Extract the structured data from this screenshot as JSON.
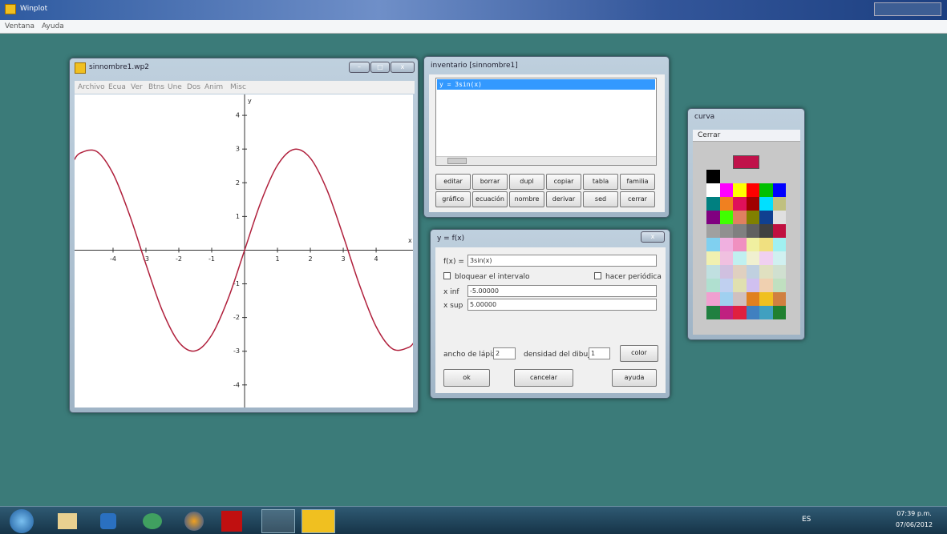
{
  "app": {
    "title": "Winplot",
    "menu": [
      "Ventana",
      "Ayuda"
    ]
  },
  "graph_window": {
    "title": "sinnombre1.wp2",
    "menu": [
      "Archivo",
      "Ecua",
      "Ver",
      "Btns",
      "Une",
      "Dos",
      "Anim",
      "Misc"
    ],
    "graph": {
      "x_label": "x",
      "y_label": "y",
      "xlim": [
        -5.17,
        5.12
      ],
      "ylim": [
        -4.67,
        4.62
      ],
      "xticks": [
        -4,
        -3,
        -2,
        -1,
        1,
        2,
        3,
        4
      ],
      "yticks": [
        -4,
        -3,
        -2,
        -1,
        1,
        2,
        3,
        4
      ],
      "curve": {
        "color": "#b0203c",
        "x": [
          -5.2,
          -5,
          -4.5,
          -4,
          -3.5,
          -3,
          -2.5,
          -2,
          -1.5,
          -1,
          -0.5,
          0,
          0.5,
          1,
          1.5,
          2,
          2.5,
          3,
          3.5,
          4,
          4.5,
          5,
          5.2
        ],
        "y": [
          2.65,
          2.88,
          2.93,
          2.27,
          1.05,
          -0.42,
          -1.8,
          -2.73,
          -2.99,
          -2.52,
          -1.44,
          0,
          1.44,
          2.52,
          2.99,
          2.73,
          1.8,
          0.42,
          -1.05,
          -2.27,
          -2.93,
          -2.88,
          -2.65
        ]
      }
    }
  },
  "inventory_window": {
    "title": "inventario [sinnombre1]",
    "items": [
      "y = 3sin(x)"
    ],
    "buttons": [
      [
        "editar",
        "borrar",
        "dupl",
        "copiar",
        "tabla",
        "familia"
      ],
      [
        "gráfico",
        "ecuación",
        "nombre",
        "derivar",
        "sed",
        "cerrar"
      ]
    ]
  },
  "function_window": {
    "title": "y = f(x)",
    "fx_label": "f(x) =",
    "fx": "3sin(x)",
    "lock_label": "bloquear el intervalo",
    "periodic_label": "hacer periódica",
    "xinf_label": "x inf",
    "xinf": "-5.00000",
    "xsup_label": "x sup",
    "xsup": "5.00000",
    "pen_label": "ancho de lápiz",
    "pen": "2",
    "density_label": "densidad del dibujo",
    "density": "1",
    "color_button": "color",
    "buttons": [
      "ok",
      "cancelar",
      "ayuda"
    ]
  },
  "curve_window": {
    "title": "curva",
    "menu": "Cerrar",
    "current_color": "#c0124a",
    "palette": [
      [
        "#000000"
      ],
      [
        "#ffffff",
        "#ff00ff",
        "#ffff00",
        "#ff0000",
        "#00c000",
        "#0000ff"
      ],
      [
        "#008080",
        "#f08020",
        "#e0105a",
        "#a00000",
        "#00e0ff",
        "#c0c080"
      ],
      [
        "#800080",
        "#40ff00",
        "#e08060",
        "#808000",
        "#104090",
        "#e0e0e0"
      ],
      [
        "#a0a0a0",
        "#909090",
        "#808080",
        "#606060",
        "#404040",
        "#c01040"
      ],
      [
        "#80d0f0",
        "#f0b0e0",
        "#f090c0",
        "#f0f0a0",
        "#f0e080",
        "#a0f0f0"
      ],
      [
        "#f0f0b0",
        "#f0c0e0",
        "#c0f0f0",
        "#f0f0d0",
        "#f0d0f0",
        "#d0f0f0"
      ],
      [
        "#c0e0e0",
        "#d0c0e0",
        "#e0d0c0",
        "#c0d0e0",
        "#e0e0c0",
        "#d0e0d0"
      ],
      [
        "#b0e0d0",
        "#c0d0f0",
        "#e0e0b0",
        "#d0c0f0",
        "#f0d0b0",
        "#c0e0c0"
      ],
      [
        "#f0a0d0",
        "#a0d0f0",
        "#d0c0c0",
        "#e08020",
        "#f0c020",
        "#d08040"
      ],
      [
        "#208040",
        "#c02080",
        "#e02040",
        "#4080c0",
        "#40a0c0",
        "#208030"
      ]
    ]
  },
  "taskbar": {
    "language": "ES",
    "time": "07:39 p.m.",
    "date": "07/06/2012"
  }
}
